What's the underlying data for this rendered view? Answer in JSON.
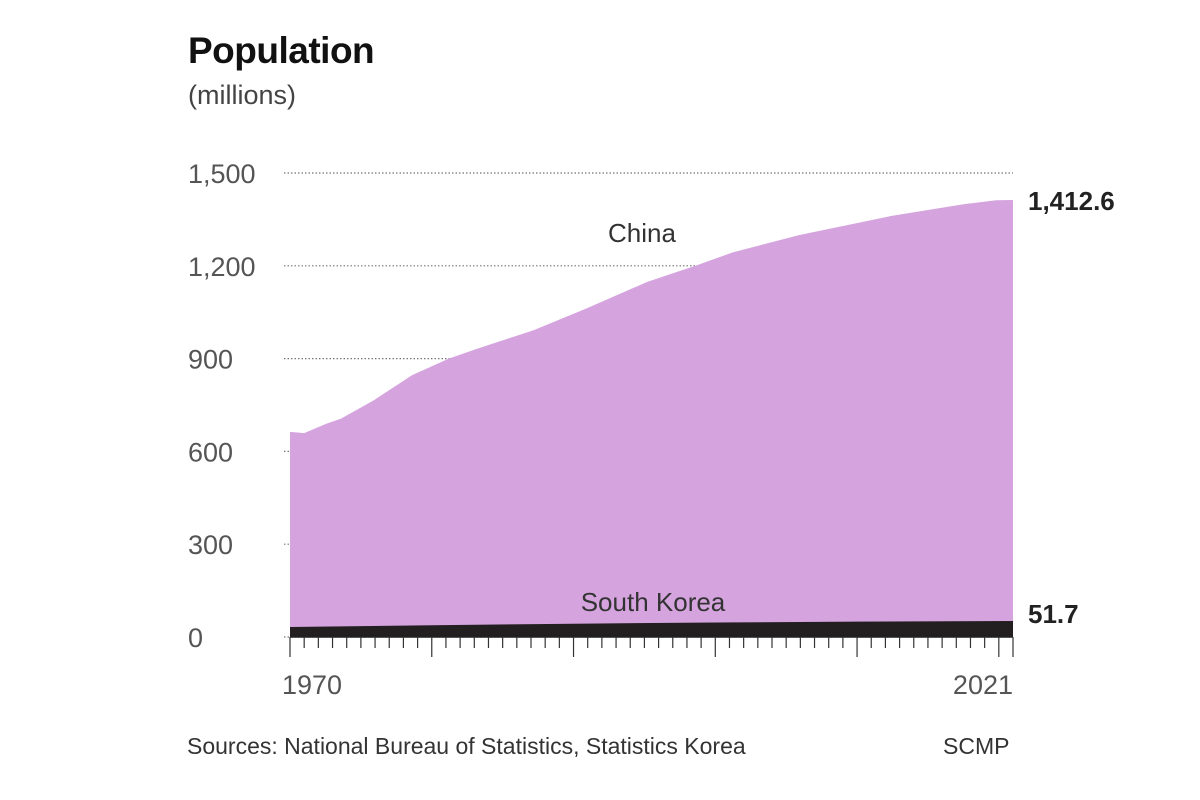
{
  "chart_data": {
    "type": "area",
    "title": "Population",
    "subtitle": "(millions)",
    "xlim": [
      1970,
      2021
    ],
    "ylim": [
      0,
      1500
    ],
    "yticks": [
      0,
      300,
      600,
      900,
      1200,
      1500
    ],
    "ytick_labels": [
      "0",
      "300",
      "600",
      "900",
      "1,200",
      "1,500"
    ],
    "xtick_labels": [
      "1970",
      "2021"
    ],
    "x_minor_ticks": "yearly",
    "x_major_ticks_every": 10,
    "grid": "horizontal dotted",
    "series": [
      {
        "name": "China",
        "color": "#d5a4df",
        "x": [
          1970,
          1971,
          1972.6,
          1973.6,
          1975.9,
          1978.6,
          1981.2,
          1983.2,
          1987.2,
          1990.9,
          1995.2,
          1998.6,
          2001.2,
          2005.9,
          2012.5,
          2017.5,
          2019.8,
          2021
        ],
        "values": [
          663,
          659,
          690,
          706,
          765,
          846,
          900,
          932,
          992,
          1062,
          1148,
          1200,
          1243,
          1299,
          1362,
          1399,
          1412,
          1412.6
        ],
        "end_label": "1,412.6"
      },
      {
        "name": "South Korea",
        "color": "#231f20",
        "x": [
          1970,
          1980,
          1990,
          2000,
          2010,
          2021
        ],
        "values": [
          32.2,
          38.1,
          42.9,
          47.0,
          49.6,
          51.7
        ],
        "end_label": "51.7"
      }
    ]
  },
  "footer": {
    "source": "Sources: National Bureau of Statistics, Statistics Korea",
    "credit": "SCMP"
  }
}
